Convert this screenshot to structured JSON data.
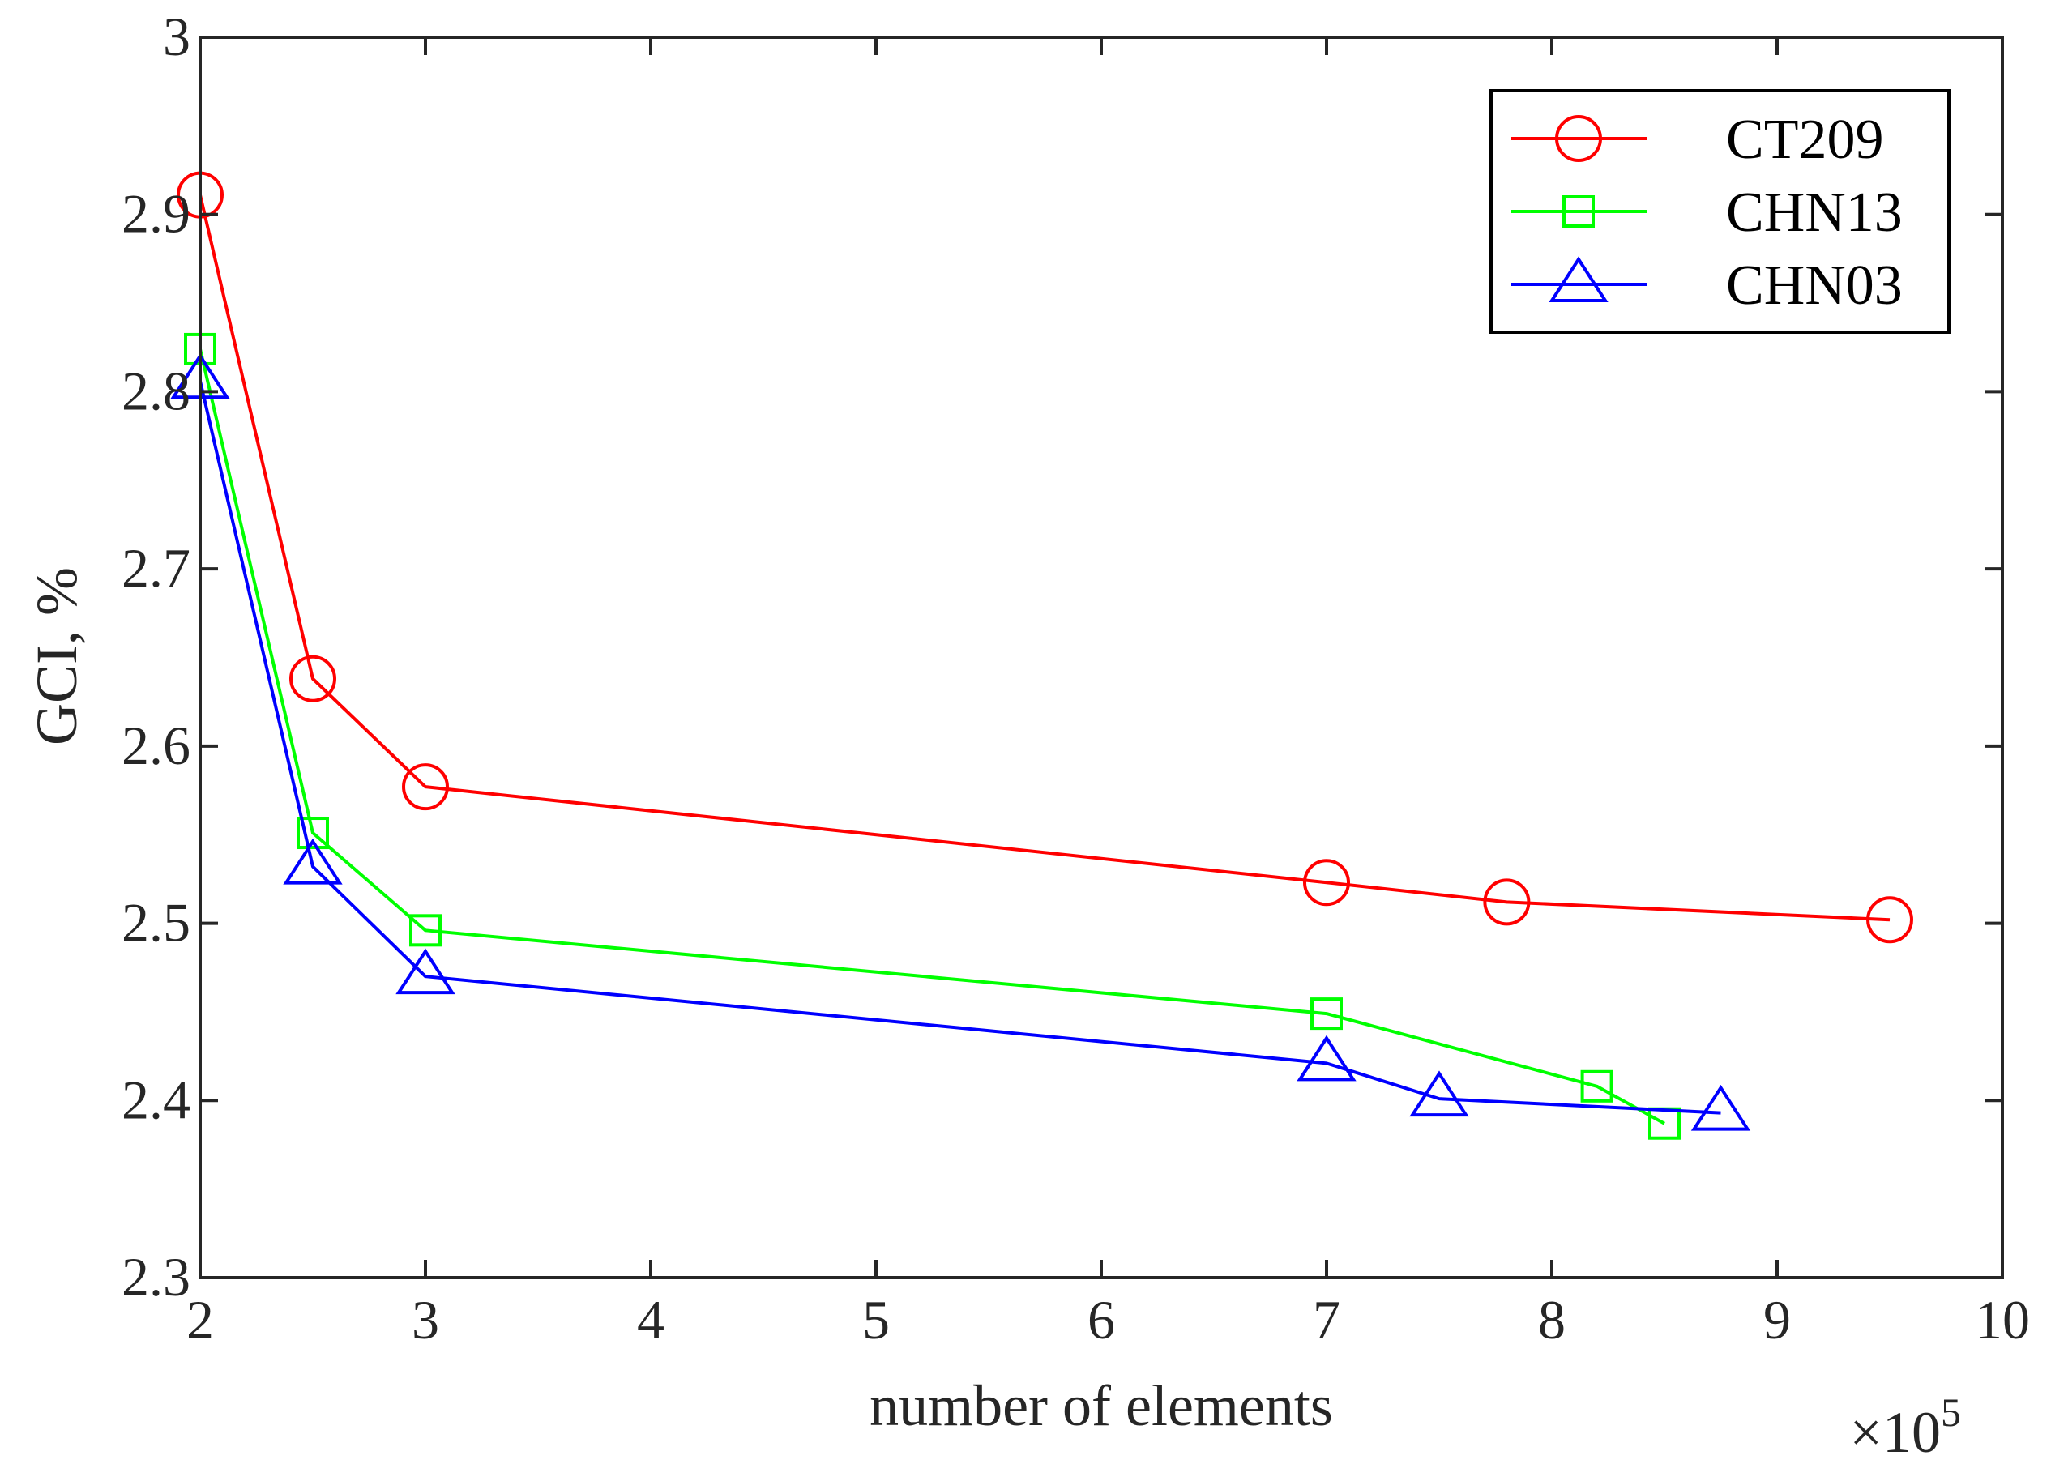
{
  "chart_data": {
    "type": "line",
    "title": "",
    "xlabel": "number of elements",
    "ylabel": "GCI, %",
    "x_exponent_label": "×10",
    "x_exponent_power": "5",
    "xlim": [
      2,
      10
    ],
    "ylim": [
      2.3,
      3.0
    ],
    "x_ticks": [
      2,
      3,
      4,
      5,
      6,
      7,
      8,
      9,
      10
    ],
    "x_tick_labels": [
      "2",
      "3",
      "4",
      "5",
      "6",
      "7",
      "8",
      "9",
      "10"
    ],
    "y_ticks": [
      2.3,
      2.4,
      2.5,
      2.6,
      2.7,
      2.8,
      2.9,
      3.0
    ],
    "y_tick_labels": [
      "2.3",
      "2.4",
      "2.5",
      "2.6",
      "2.7",
      "2.8",
      "2.9",
      "3"
    ],
    "grid": false,
    "legend_position": "top-right",
    "series": [
      {
        "name": "CT209",
        "color": "#ff0000",
        "marker": "circle",
        "x": [
          2.0,
          2.5,
          3.0,
          7.0,
          7.8,
          9.5
        ],
        "y": [
          2.911,
          2.638,
          2.577,
          2.523,
          2.512,
          2.502
        ]
      },
      {
        "name": "CHN13",
        "color": "#00ff00",
        "marker": "square",
        "x": [
          2.0,
          2.5,
          3.0,
          7.0,
          8.2,
          8.5
        ],
        "y": [
          2.824,
          2.551,
          2.496,
          2.449,
          2.408,
          2.387
        ]
      },
      {
        "name": "CHN03",
        "color": "#0000ff",
        "marker": "triangle",
        "x": [
          2.0,
          2.5,
          3.0,
          7.0,
          7.5,
          8.75
        ],
        "y": [
          2.806,
          2.532,
          2.47,
          2.421,
          2.401,
          2.393
        ]
      }
    ]
  }
}
